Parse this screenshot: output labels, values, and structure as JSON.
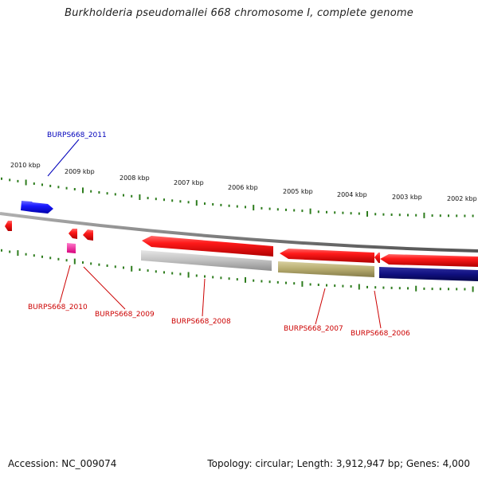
{
  "title": "Burkholderia pseudomallei 668 chromosome I, complete genome",
  "footer": {
    "accession": "Accession: NC_009074",
    "summary": "Topology: circular; Length: 3,912,947 bp; Genes: 4,000"
  },
  "colors": {
    "backbone": "#8a8a8a",
    "tick": "#2e7d1e",
    "red_gene": "#ee1111",
    "blue_gene": "#1a1aff",
    "navy_gene": "#101080",
    "olive_gene": "#b5aa6e",
    "grey_gene": "#b8b8b8",
    "pink_gene": "#ff33aa",
    "label_red": "#cc0000",
    "label_blue": "#0000bb"
  },
  "scale_labels": [
    "2010 kbp",
    "2009 kbp",
    "2008 kbp",
    "2007 kbp",
    "2006 kbp",
    "2005 kbp",
    "2004 kbp",
    "2003 kbp",
    "2002 kbp"
  ],
  "gene_labels": [
    {
      "text": "BURPS668_2011",
      "color": "blue"
    },
    {
      "text": "BURPS668_2010",
      "color": "red"
    },
    {
      "text": "BURPS668_2009",
      "color": "red"
    },
    {
      "text": "BURPS668_2008",
      "color": "red"
    },
    {
      "text": "BURPS668_2007",
      "color": "red"
    },
    {
      "text": "BURPS668_2006",
      "color": "red"
    }
  ]
}
